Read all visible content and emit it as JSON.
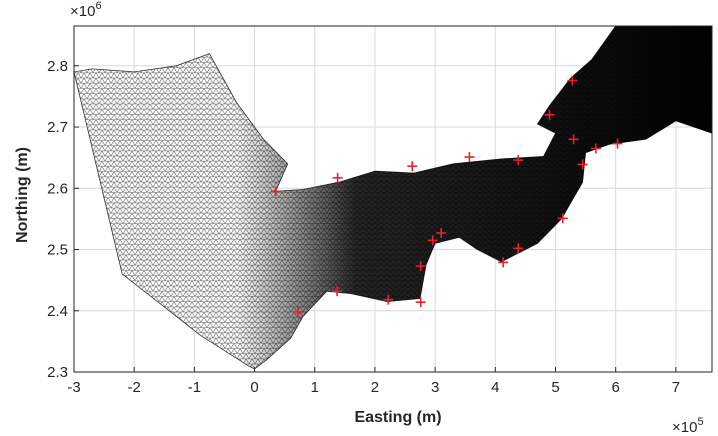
{
  "chart_data": {
    "type": "scatter",
    "title": "",
    "xlabel": "Easting (m)",
    "ylabel": "Northing (m)",
    "x_exponent_label": "×10",
    "x_exponent_power": "5",
    "y_exponent_label": "×10",
    "y_exponent_power": "6",
    "xlim": [
      -300000,
      760000
    ],
    "ylim": [
      2300000,
      2865000
    ],
    "xticks": [
      -3,
      -2,
      -1,
      0,
      1,
      2,
      3,
      4,
      5,
      6,
      7
    ],
    "xtick_labels": [
      "-3",
      "-2",
      "-1",
      "0",
      "1",
      "2",
      "3",
      "4",
      "5",
      "6",
      "7"
    ],
    "yticks": [
      2.3,
      2.4,
      2.5,
      2.6,
      2.7,
      2.8
    ],
    "ytick_labels": [
      "2.3",
      "2.4",
      "2.5",
      "2.6",
      "2.7",
      "2.8"
    ],
    "grid": true,
    "legend": "none",
    "colors": {
      "mesh_ocean": "#6b6b6b",
      "mesh_coast": "#000000",
      "stations": "#e8202a",
      "grid": "#d9d9d9",
      "axes": "#262626"
    },
    "mesh_domain": {
      "outer_ocean_boundary": [
        [
          -300000,
          2790000
        ],
        [
          -270000,
          2795000
        ],
        [
          -200000,
          2790000
        ],
        [
          -130000,
          2800000
        ],
        [
          -75000,
          2820000
        ],
        [
          -30000,
          2740000
        ],
        [
          15000,
          2680000
        ],
        [
          55000,
          2640000
        ],
        [
          35000,
          2595000
        ],
        [
          80000,
          2598000
        ],
        [
          140000,
          2610000
        ],
        [
          200000,
          2628000
        ],
        [
          265000,
          2625000
        ],
        [
          330000,
          2640000
        ],
        [
          410000,
          2648000
        ],
        [
          480000,
          2652000
        ],
        [
          500000,
          2690000
        ],
        [
          470000,
          2705000
        ],
        [
          490000,
          2735000
        ],
        [
          525000,
          2780000
        ],
        [
          560000,
          2810000
        ],
        [
          600000,
          2865000
        ],
        [
          760000,
          2865000
        ],
        [
          760000,
          2690000
        ],
        [
          700000,
          2710000
        ],
        [
          650000,
          2680000
        ],
        [
          590000,
          2672000
        ],
        [
          550000,
          2658000
        ],
        [
          545000,
          2610000
        ],
        [
          510000,
          2550000
        ],
        [
          470000,
          2510000
        ],
        [
          410000,
          2480000
        ],
        [
          370000,
          2500000
        ],
        [
          340000,
          2520000
        ],
        [
          300000,
          2510000
        ],
        [
          285000,
          2475000
        ],
        [
          275000,
          2420000
        ],
        [
          220000,
          2415000
        ],
        [
          160000,
          2428000
        ],
        [
          120000,
          2432000
        ],
        [
          80000,
          2390000
        ],
        [
          60000,
          2355000
        ],
        [
          20000,
          2320000
        ],
        [
          0,
          2305000
        ],
        [
          -10000,
          2310000
        ],
        [
          -90000,
          2360000
        ],
        [
          -220000,
          2460000
        ]
      ],
      "fine_mesh_west_limit_easting": -30000
    },
    "stations": [
      {
        "x": 35000,
        "y": 2595000
      },
      {
        "x": 138000,
        "y": 2617000
      },
      {
        "x": 262000,
        "y": 2636000
      },
      {
        "x": 357000,
        "y": 2651000
      },
      {
        "x": 438000,
        "y": 2646000
      },
      {
        "x": 490000,
        "y": 2720000
      },
      {
        "x": 528000,
        "y": 2776000
      },
      {
        "x": 530000,
        "y": 2680000
      },
      {
        "x": 567000,
        "y": 2665000
      },
      {
        "x": 603000,
        "y": 2673000
      },
      {
        "x": 545000,
        "y": 2639000
      },
      {
        "x": 512000,
        "y": 2551000
      },
      {
        "x": 438000,
        "y": 2502000
      },
      {
        "x": 413000,
        "y": 2479000
      },
      {
        "x": 310000,
        "y": 2527000
      },
      {
        "x": 296000,
        "y": 2515000
      },
      {
        "x": 276000,
        "y": 2473000
      },
      {
        "x": 276000,
        "y": 2414000
      },
      {
        "x": 222000,
        "y": 2418000
      },
      {
        "x": 137000,
        "y": 2432000
      },
      {
        "x": 72000,
        "y": 2398000
      }
    ]
  }
}
